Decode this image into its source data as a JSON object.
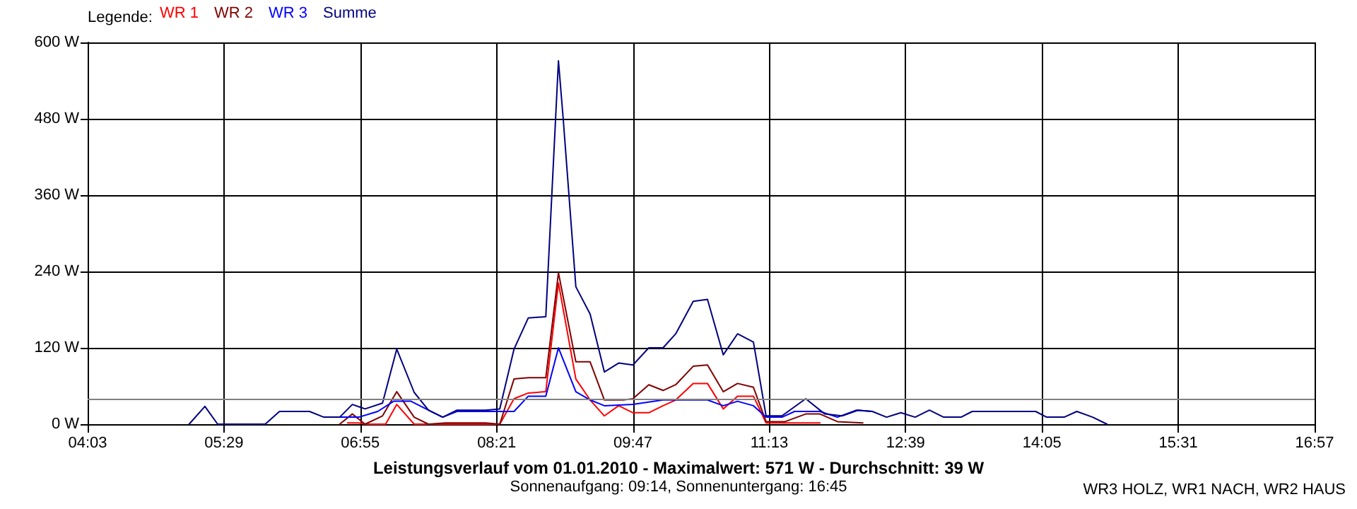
{
  "chart_data": {
    "type": "line",
    "title": "Leistungsverlauf vom 01.01.2010 - Maximalwert: 571 W - Durchschnitt: 39 W",
    "subtitle": "Sonnenaufgang: 09:14, Sonnenuntergang: 16:45",
    "legend_title": "Legende:",
    "annotations": [
      "WR3 HOLZ, WR1 NACH, WR2 HAUS"
    ],
    "xlim": [
      4.05,
      16.95
    ],
    "xticks": [
      {
        "value": 4.05,
        "label": "04:03"
      },
      {
        "value": 5.483,
        "label": "05:29"
      },
      {
        "value": 6.917,
        "label": "06:55"
      },
      {
        "value": 8.35,
        "label": "08:21"
      },
      {
        "value": 9.783,
        "label": "09:47"
      },
      {
        "value": 11.217,
        "label": "11:13"
      },
      {
        "value": 12.65,
        "label": "12:39"
      },
      {
        "value": 14.083,
        "label": "14:05"
      },
      {
        "value": 15.517,
        "label": "15:31"
      },
      {
        "value": 16.95,
        "label": "16:57"
      }
    ],
    "ylim": [
      0,
      600
    ],
    "yticks": [
      {
        "value": 0,
        "label": "0 W"
      },
      {
        "value": 120,
        "label": "120 W"
      },
      {
        "value": 240,
        "label": "240 W"
      },
      {
        "value": 360,
        "label": "360 W"
      },
      {
        "value": 480,
        "label": "480 W"
      },
      {
        "value": 600,
        "label": "600 W"
      }
    ],
    "grid": true,
    "legend": "top left",
    "marker": "none",
    "line_style": "solid",
    "ref_lines": [
      {
        "axis": "y",
        "value": 39,
        "color": "#808080"
      }
    ],
    "series": [
      {
        "name": "WR 1",
        "color": "#ff0000",
        "x": [
          6.783,
          6.9,
          6.967,
          7.183,
          7.3,
          7.483,
          7.633,
          8.383,
          8.533,
          8.683,
          8.867,
          9.0,
          9.183,
          9.333,
          9.483,
          9.633,
          9.783,
          9.95,
          10.1,
          10.233,
          10.417,
          10.567,
          10.733,
          10.883,
          11.05,
          11.183,
          11.35,
          11.75
        ],
        "values": [
          2,
          2,
          0,
          0,
          31,
          0,
          0,
          0,
          40,
          49,
          51,
          222,
          71,
          38,
          13,
          29,
          18,
          18,
          29,
          38,
          64,
          64,
          24,
          44,
          44,
          2,
          2,
          2
        ]
      },
      {
        "name": "WR 2",
        "color": "#800000",
        "x": [
          6.7,
          6.833,
          6.967,
          7.15,
          7.3,
          7.483,
          7.633,
          7.817,
          8.017,
          8.233,
          8.383,
          8.533,
          8.683,
          8.867,
          9.0,
          9.183,
          9.333,
          9.483,
          9.683,
          9.783,
          9.95,
          10.1,
          10.233,
          10.417,
          10.567,
          10.733,
          10.883,
          11.05,
          11.183,
          11.383,
          11.6,
          11.75,
          11.933,
          12.2
        ],
        "values": [
          0,
          16,
          0,
          13,
          51,
          11,
          0,
          2,
          2,
          2,
          0,
          71,
          73,
          73,
          238,
          98,
          98,
          38,
          38,
          40,
          62,
          53,
          62,
          91,
          93,
          51,
          64,
          58,
          4,
          4,
          16,
          16,
          4,
          2
        ]
      },
      {
        "name": "WR 3",
        "color": "#0000ff",
        "x": [
          6.7,
          6.9,
          7.1,
          7.267,
          7.45,
          7.633,
          7.783,
          7.933,
          8.383,
          8.533,
          8.683,
          8.867,
          9.0,
          9.183,
          9.333,
          9.483,
          9.783,
          10.1,
          10.567,
          10.733,
          10.883,
          11.05,
          11.183,
          11.35,
          11.483,
          11.75,
          11.933,
          12.133,
          12.3
        ],
        "values": [
          11,
          11,
          20,
          36,
          36,
          22,
          11,
          20,
          20,
          20,
          44,
          44,
          120,
          51,
          38,
          29,
          31,
          38,
          38,
          29,
          36,
          29,
          11,
          11,
          20,
          20,
          11,
          22,
          20
        ]
      },
      {
        "name": "Summe",
        "color": "#000080",
        "x": [
          5.117,
          5.283,
          5.417,
          5.917,
          6.067,
          6.383,
          6.533,
          6.7,
          6.833,
          6.967,
          7.15,
          7.3,
          7.483,
          7.633,
          7.783,
          7.933,
          8.233,
          8.383,
          8.533,
          8.683,
          8.867,
          9.0,
          9.05,
          9.183,
          9.333,
          9.483,
          9.633,
          9.783,
          9.95,
          10.1,
          10.233,
          10.417,
          10.567,
          10.733,
          10.883,
          11.05,
          11.183,
          11.35,
          11.6,
          11.8,
          11.983,
          12.15,
          12.3,
          12.45,
          12.6,
          12.75,
          12.9,
          13.05,
          13.233,
          13.35,
          14.017,
          14.133,
          14.317,
          14.45,
          14.617,
          14.767
        ],
        "values": [
          0,
          28,
          0,
          0,
          20,
          20,
          11,
          11,
          31,
          24,
          33,
          118,
          50,
          22,
          11,
          22,
          22,
          24,
          118,
          167,
          169,
          571,
          480,
          216,
          173,
          82,
          96,
          93,
          120,
          120,
          142,
          193,
          196,
          109,
          142,
          129,
          13,
          13,
          40,
          16,
          13,
          22,
          20,
          11,
          18,
          11,
          22,
          11,
          11,
          20,
          20,
          11,
          11,
          20,
          11,
          0
        ]
      }
    ]
  }
}
